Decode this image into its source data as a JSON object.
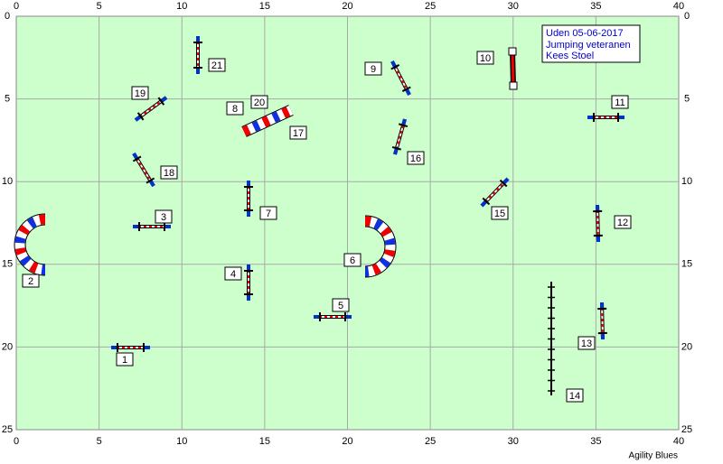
{
  "axes": {
    "x_ticks": [
      0,
      5,
      10,
      15,
      20,
      25,
      30,
      35,
      40
    ],
    "y_ticks": [
      0,
      5,
      10,
      15,
      20,
      25
    ]
  },
  "info": {
    "lines": [
      "Uden 05-06-2017",
      "Jumping veteranen",
      "Kees Stoel"
    ]
  },
  "obstacles": [
    "1",
    "2",
    "3",
    "4",
    "5",
    "6",
    "7",
    "8",
    "9",
    "10",
    "11",
    "12",
    "13",
    "14",
    "15",
    "16",
    "17",
    "18",
    "19",
    "20",
    "21"
  ],
  "footer": "Agility Blues"
}
